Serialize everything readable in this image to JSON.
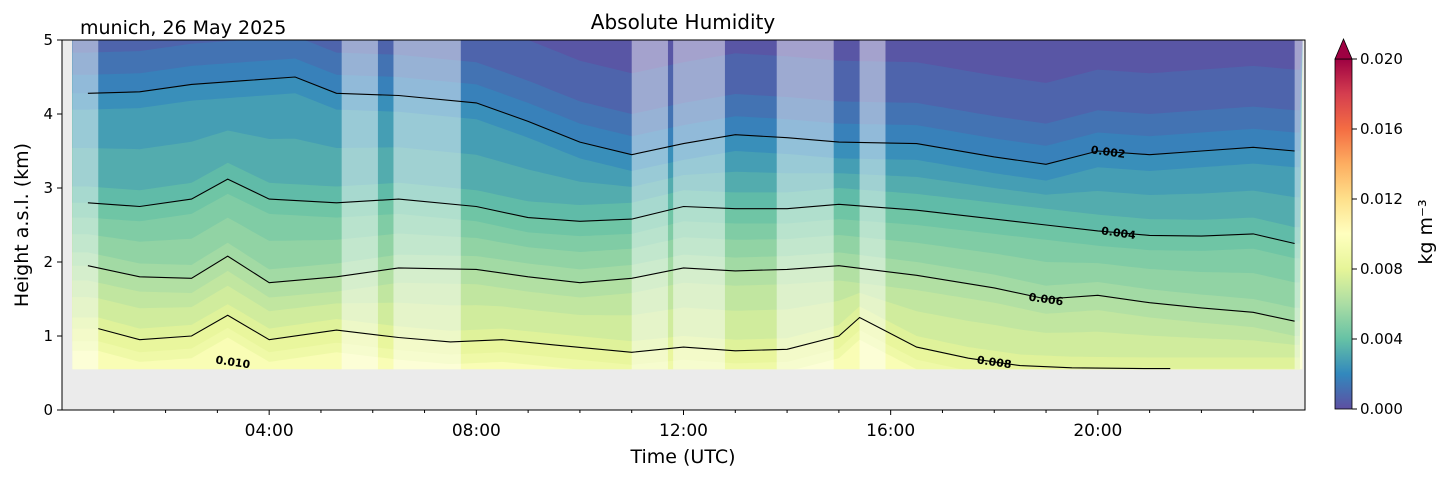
{
  "chart_data": {
    "type": "heatmap",
    "title": "Absolute Humidity",
    "subtitle": "munich, 26 May 2025",
    "xlabel": "Time (UTC)",
    "ylabel": "Height a.s.l. (km)",
    "xlim": [
      0,
      24
    ],
    "ylim": [
      0,
      5
    ],
    "x_ticks": [
      {
        "value": 4,
        "label": "04:00"
      },
      {
        "value": 8,
        "label": "08:00"
      },
      {
        "value": 12,
        "label": "12:00"
      },
      {
        "value": 16,
        "label": "16:00"
      },
      {
        "value": 20,
        "label": "20:00"
      }
    ],
    "y_ticks": [
      {
        "value": 0,
        "label": "0"
      },
      {
        "value": 1,
        "label": "1"
      },
      {
        "value": 2,
        "label": "2"
      },
      {
        "value": 3,
        "label": "3"
      },
      {
        "value": 4,
        "label": "4"
      },
      {
        "value": 5,
        "label": "5"
      }
    ],
    "data_start_height_km": 0.55,
    "colorbar": {
      "label": "kg m⁻³",
      "min": 0.0,
      "max": 0.02,
      "extend": "max",
      "colormap": "Spectral_r",
      "ticks": [
        {
          "value": 0.0,
          "label": "0.000"
        },
        {
          "value": 0.004,
          "label": "0.004"
        },
        {
          "value": 0.008,
          "label": "0.008"
        },
        {
          "value": 0.012,
          "label": "0.012"
        },
        {
          "value": 0.016,
          "label": "0.016"
        },
        {
          "value": 0.02,
          "label": "0.020"
        }
      ]
    },
    "contour_levels": [
      {
        "value": 0.002,
        "label": "0.002",
        "label_at_hour": 20.2,
        "heights_km": [
          [
            0.5,
            4.28
          ],
          [
            1.5,
            4.3
          ],
          [
            2.5,
            4.4
          ],
          [
            3.5,
            4.45
          ],
          [
            4.5,
            4.5
          ],
          [
            5.3,
            4.28
          ],
          [
            6.5,
            4.25
          ],
          [
            8.0,
            4.15
          ],
          [
            9.0,
            3.9
          ],
          [
            10.0,
            3.62
          ],
          [
            11.0,
            3.45
          ],
          [
            12.0,
            3.6
          ],
          [
            13.0,
            3.72
          ],
          [
            14.0,
            3.68
          ],
          [
            15.0,
            3.62
          ],
          [
            16.5,
            3.6
          ],
          [
            18.0,
            3.42
          ],
          [
            19.0,
            3.32
          ],
          [
            20.0,
            3.5
          ],
          [
            21.0,
            3.45
          ],
          [
            22.0,
            3.5
          ],
          [
            23.0,
            3.55
          ],
          [
            23.8,
            3.5
          ]
        ]
      },
      {
        "value": 0.004,
        "label": "0.004",
        "label_at_hour": 20.4,
        "heights_km": [
          [
            0.5,
            2.8
          ],
          [
            1.5,
            2.75
          ],
          [
            2.5,
            2.85
          ],
          [
            3.2,
            3.12
          ],
          [
            4.0,
            2.85
          ],
          [
            5.3,
            2.8
          ],
          [
            6.5,
            2.85
          ],
          [
            8.0,
            2.75
          ],
          [
            9.0,
            2.6
          ],
          [
            10.0,
            2.55
          ],
          [
            11.0,
            2.58
          ],
          [
            12.0,
            2.75
          ],
          [
            13.0,
            2.72
          ],
          [
            14.0,
            2.72
          ],
          [
            15.0,
            2.78
          ],
          [
            16.5,
            2.7
          ],
          [
            18.0,
            2.58
          ],
          [
            19.0,
            2.5
          ],
          [
            20.0,
            2.42
          ],
          [
            21.0,
            2.36
          ],
          [
            22.0,
            2.35
          ],
          [
            23.0,
            2.38
          ],
          [
            23.8,
            2.25
          ]
        ]
      },
      {
        "value": 0.006,
        "label": "0.006",
        "label_at_hour": 19.0,
        "heights_km": [
          [
            0.5,
            1.95
          ],
          [
            1.5,
            1.8
          ],
          [
            2.5,
            1.78
          ],
          [
            3.2,
            2.08
          ],
          [
            4.0,
            1.72
          ],
          [
            5.3,
            1.8
          ],
          [
            6.5,
            1.92
          ],
          [
            8.0,
            1.9
          ],
          [
            9.0,
            1.8
          ],
          [
            10.0,
            1.72
          ],
          [
            11.0,
            1.78
          ],
          [
            12.0,
            1.92
          ],
          [
            13.0,
            1.88
          ],
          [
            14.0,
            1.9
          ],
          [
            15.0,
            1.95
          ],
          [
            16.5,
            1.82
          ],
          [
            18.0,
            1.65
          ],
          [
            19.0,
            1.5
          ],
          [
            20.0,
            1.55
          ],
          [
            21.0,
            1.45
          ],
          [
            22.0,
            1.38
          ],
          [
            23.0,
            1.32
          ],
          [
            23.8,
            1.2
          ]
        ]
      },
      {
        "value": 0.008,
        "label": "0.008",
        "label_at_hour": 18.0,
        "heights_km": [
          [
            0.7,
            1.1
          ],
          [
            1.5,
            0.95
          ],
          [
            2.5,
            1.0
          ],
          [
            3.2,
            1.28
          ],
          [
            4.0,
            0.95
          ],
          [
            5.3,
            1.08
          ],
          [
            6.5,
            0.98
          ],
          [
            7.5,
            0.92
          ],
          [
            8.5,
            0.95
          ],
          [
            9.5,
            0.88
          ],
          [
            11.0,
            0.78
          ],
          [
            12.0,
            0.85
          ],
          [
            13.0,
            0.8
          ],
          [
            14.0,
            0.82
          ],
          [
            15.0,
            1.0
          ],
          [
            15.4,
            1.25
          ],
          [
            16.5,
            0.85
          ],
          [
            17.5,
            0.7
          ],
          [
            18.5,
            0.6
          ],
          [
            19.5,
            0.57
          ],
          [
            21.0,
            0.56
          ],
          [
            21.4,
            0.56
          ]
        ]
      },
      {
        "value": 0.01,
        "label": "0.010",
        "label_at_hour": 3.3,
        "heights_km": []
      }
    ],
    "masked_time_intervals_hours": [
      [
        0.2,
        0.7
      ],
      [
        5.4,
        6.1
      ],
      [
        6.4,
        7.7
      ],
      [
        11.0,
        11.7
      ],
      [
        11.8,
        12.8
      ],
      [
        13.8,
        14.9
      ],
      [
        15.4,
        15.9
      ],
      [
        23.8,
        23.95
      ]
    ]
  }
}
